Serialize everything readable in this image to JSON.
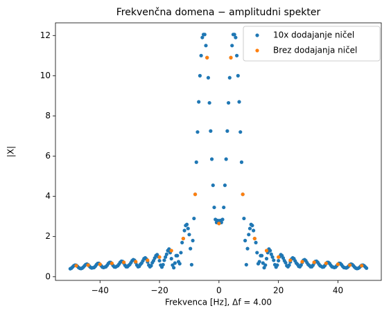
{
  "chart_data": {
    "type": "scatter",
    "title": "Frekvenčna domena − amplitudni spekter",
    "x_label": "Frekvenca [Hz], Δf = 4.00",
    "y_label": "|X|",
    "xlim": [
      -54.98,
      54.58
    ],
    "ylim": [
      -0.18,
      12.63
    ],
    "xticks": [
      {
        "value": -40,
        "label": "−40"
      },
      {
        "value": -20,
        "label": "−20"
      },
      0,
      20,
      40
    ],
    "yticks": [
      0,
      2,
      4,
      6,
      8,
      10,
      12
    ],
    "grid": false,
    "legend": "upper right",
    "series": [
      {
        "name": "10x dodajanje ničel",
        "color": "#1f77b4",
        "x": [
          -50,
          -49.6,
          -49.2,
          -48.8,
          -48.4,
          -48,
          -47.6,
          -47.2,
          -46.8,
          -46.4,
          -46,
          -45.6,
          -45.2,
          -44.8,
          -44.4,
          -44,
          -43.6,
          -43.2,
          -42.8,
          -42.4,
          -42,
          -41.6,
          -41.2,
          -40.8,
          -40.4,
          -40,
          -39.6,
          -39.2,
          -38.8,
          -38.4,
          -38,
          -37.6,
          -37.2,
          -36.8,
          -36.4,
          -36,
          -35.6,
          -35.2,
          -34.8,
          -34.4,
          -34,
          -33.6,
          -33.2,
          -32.8,
          -32.4,
          -32,
          -31.6,
          -31.2,
          -30.8,
          -30.4,
          -30,
          -29.6,
          -29.2,
          -28.8,
          -28.4,
          -28,
          -27.6,
          -27.2,
          -26.8,
          -26.4,
          -26,
          -25.6,
          -25.2,
          -24.8,
          -24.4,
          -24,
          -23.6,
          -23.2,
          -22.8,
          -22.4,
          -22,
          -21.6,
          -21.2,
          -20.8,
          -20.4,
          -20,
          -19.6,
          -19.2,
          -18.8,
          -18.4,
          -18,
          -17.6,
          -17.2,
          -16.8,
          -16.4,
          -16,
          -15.6,
          -15.2,
          -14.8,
          -14.4,
          -14,
          -13.6,
          -13.2,
          -12.8,
          -12.4,
          -12,
          -11.6,
          -11.2,
          -10.8,
          -10.4,
          -10,
          -9.6,
          -9.2,
          -8.8,
          -8.4,
          -8,
          -7.6,
          -7.2,
          -6.8,
          -6.4,
          -6,
          -5.6,
          -5.2,
          -4.8,
          -4.4,
          -4,
          -3.6,
          -3.2,
          -2.8,
          -2.4,
          -2,
          -1.6,
          -1.2,
          -0.8,
          -0.4,
          0,
          0.4,
          0.8,
          1.2,
          1.6,
          2,
          2.4,
          2.8,
          3.2,
          3.6,
          4,
          4.4,
          4.8,
          5.2,
          5.6,
          6,
          6.4,
          6.8,
          7.2,
          7.6,
          8,
          8.4,
          8.8,
          9.2,
          9.6,
          10,
          10.4,
          10.8,
          11.2,
          11.6,
          12,
          12.4,
          12.8,
          13.2,
          13.6,
          14,
          14.4,
          14.8,
          15.2,
          15.6,
          16,
          16.4,
          16.8,
          17.2,
          17.6,
          18,
          18.4,
          18.8,
          19.2,
          19.6,
          20,
          20.4,
          20.8,
          21.2,
          21.6,
          22,
          22.4,
          22.8,
          23.2,
          23.6,
          24,
          24.4,
          24.8,
          25.2,
          25.6,
          26,
          26.4,
          26.8,
          27.2,
          27.6,
          28,
          28.4,
          28.8,
          29.2,
          29.6,
          30,
          30.4,
          30.8,
          31.2,
          31.6,
          32,
          32.4,
          32.8,
          33.2,
          33.6,
          34,
          34.4,
          34.8,
          35.2,
          35.6,
          36,
          36.4,
          36.8,
          37.2,
          37.6,
          38,
          38.4,
          38.8,
          39.2,
          39.6,
          40,
          40.4,
          40.8,
          41.2,
          41.6,
          42,
          42.4,
          42.8,
          43.2,
          43.6,
          44,
          44.4,
          44.8,
          45.2,
          45.6,
          46,
          46.4,
          46.8,
          47.2,
          47.6,
          48,
          48.4,
          48.8,
          49.2,
          49.6
        ],
        "values": [
          0.4,
          0.43,
          0.49,
          0.55,
          0.58,
          0.57,
          0.52,
          0.46,
          0.42,
          0.41,
          0.43,
          0.48,
          0.55,
          0.61,
          0.63,
          0.6,
          0.53,
          0.47,
          0.44,
          0.45,
          0.46,
          0.52,
          0.6,
          0.66,
          0.67,
          0.62,
          0.55,
          0.48,
          0.46,
          0.48,
          0.5,
          0.57,
          0.66,
          0.71,
          0.71,
          0.65,
          0.56,
          0.49,
          0.48,
          0.52,
          0.55,
          0.63,
          0.72,
          0.77,
          0.76,
          0.68,
          0.57,
          0.5,
          0.5,
          0.56,
          0.61,
          0.7,
          0.8,
          0.85,
          0.82,
          0.71,
          0.58,
          0.5,
          0.52,
          0.62,
          0.68,
          0.79,
          0.9,
          0.94,
          0.88,
          0.74,
          0.58,
          0.5,
          0.55,
          0.7,
          0.8,
          0.93,
          1.05,
          1.1,
          1.0,
          0.8,
          0.58,
          0.48,
          0.6,
          0.82,
          0.98,
          1.12,
          1.3,
          1.38,
          1.2,
          0.9,
          0.58,
          0.45,
          0.68,
          1.05,
          1.05,
          0.75,
          0.65,
          1.2,
          1.7,
          1.9,
          2.3,
          2.55,
          2.6,
          2.4,
          2.1,
          1.4,
          0.6,
          1.8,
          2.9,
          4.1,
          5.7,
          7.2,
          8.7,
          10.0,
          11.0,
          11.9,
          12.05,
          12.05,
          11.5,
          10.9,
          9.9,
          8.65,
          7.25,
          5.85,
          4.55,
          3.45,
          2.85,
          2.7,
          2.8,
          2.65,
          2.8,
          2.7,
          2.85,
          3.45,
          4.55,
          5.85,
          7.25,
          8.65,
          9.9,
          10.9,
          11.5,
          12.05,
          12.05,
          11.9,
          11.0,
          10.0,
          8.7,
          7.2,
          5.7,
          4.1,
          2.9,
          1.8,
          0.6,
          1.4,
          2.1,
          2.4,
          2.6,
          2.55,
          2.3,
          1.9,
          1.7,
          1.2,
          0.65,
          0.75,
          1.05,
          1.05,
          0.68,
          0.45,
          0.58,
          0.9,
          1.2,
          1.38,
          1.3,
          1.12,
          0.98,
          0.82,
          0.6,
          0.48,
          0.58,
          0.8,
          1.0,
          1.1,
          1.05,
          0.93,
          0.8,
          0.7,
          0.55,
          0.5,
          0.58,
          0.74,
          0.88,
          0.94,
          0.9,
          0.79,
          0.68,
          0.62,
          0.52,
          0.5,
          0.58,
          0.71,
          0.82,
          0.85,
          0.8,
          0.7,
          0.61,
          0.56,
          0.5,
          0.5,
          0.57,
          0.68,
          0.76,
          0.77,
          0.72,
          0.63,
          0.55,
          0.52,
          0.48,
          0.49,
          0.56,
          0.65,
          0.71,
          0.71,
          0.66,
          0.57,
          0.5,
          0.48,
          0.46,
          0.48,
          0.55,
          0.62,
          0.67,
          0.66,
          0.6,
          0.52,
          0.46,
          0.45,
          0.44,
          0.47,
          0.53,
          0.6,
          0.63,
          0.61,
          0.55,
          0.48,
          0.43,
          0.41,
          0.42,
          0.46,
          0.52,
          0.57,
          0.58,
          0.55,
          0.49,
          0.43
        ]
      },
      {
        "name": "Brez dodajanja ničel",
        "color": "#ff7f0e",
        "x": [
          -48,
          -44,
          -40,
          -36,
          -32,
          -28,
          -24,
          -20,
          -16,
          -12,
          -8,
          -4,
          0,
          4,
          8,
          12,
          16,
          20,
          24,
          28,
          32,
          36,
          40,
          44,
          48
        ],
        "values": [
          0.55,
          0.58,
          0.62,
          0.67,
          0.72,
          0.75,
          0.82,
          0.98,
          1.3,
          1.9,
          4.1,
          10.9,
          2.65,
          10.9,
          4.1,
          1.9,
          1.3,
          0.98,
          0.82,
          0.75,
          0.72,
          0.67,
          0.62,
          0.58,
          0.55
        ]
      }
    ]
  }
}
